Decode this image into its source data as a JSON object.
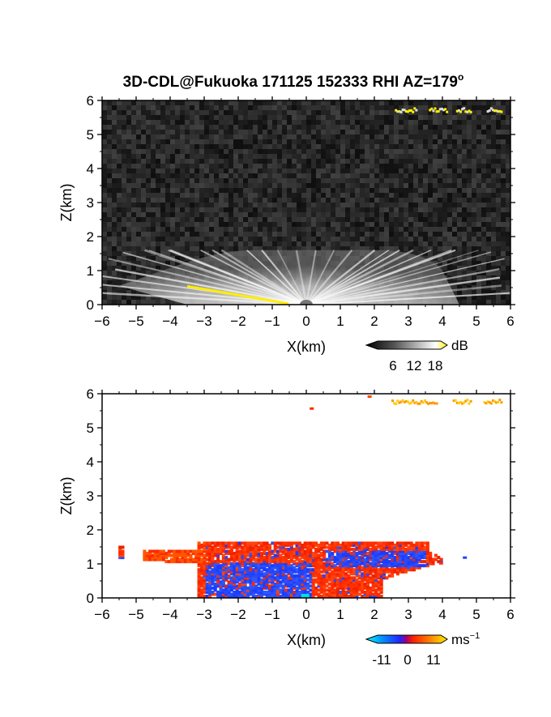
{
  "title": "3D-CDL@Fukuoka 171125 152333 RHI AZ=179",
  "title_superscript": "o",
  "chart_data": [
    {
      "type": "heatmap",
      "panel": "reflectivity",
      "xlabel": "X(km)",
      "ylabel": "Z(km)",
      "xlim": [
        -6,
        6
      ],
      "ylim": [
        0,
        6
      ],
      "x_ticks": [
        -6,
        -5,
        -4,
        -3,
        -2,
        -1,
        0,
        1,
        2,
        3,
        4,
        5,
        6
      ],
      "y_ticks": [
        0,
        1,
        2,
        3,
        4,
        5,
        6
      ],
      "colorbar": {
        "unit": "dB",
        "ticks": [
          6,
          12,
          18
        ],
        "colormap": "grayscale-to-yellow"
      },
      "features": [
        {
          "description": "near-surface echo fan",
          "x_range": [
            -5.5,
            4.0
          ],
          "z_top_km": 1.6
        },
        {
          "description": "high-value band along ground",
          "x_range": [
            -3.5,
            -0.6
          ],
          "z_range": [
            0.0,
            0.55
          ]
        },
        {
          "description": "elevated layer echoes",
          "x_range": [
            2.5,
            5.7
          ],
          "z_km": 5.75
        }
      ]
    },
    {
      "type": "heatmap",
      "panel": "doppler-velocity",
      "xlabel": "X(km)",
      "ylabel": "Z(km)",
      "xlim": [
        -6,
        6
      ],
      "ylim": [
        0,
        6
      ],
      "x_ticks": [
        -6,
        -5,
        -4,
        -3,
        -2,
        -1,
        0,
        1,
        2,
        3,
        4,
        5,
        6
      ],
      "y_ticks": [
        0,
        1,
        2,
        3,
        4,
        5,
        6
      ],
      "colorbar": {
        "unit": "ms",
        "unit_superscript": "−1",
        "ticks": [
          -11,
          0,
          11
        ],
        "colormap": "cyan-blue-red-yellow"
      },
      "features": [
        {
          "description": "approaching (blue) region",
          "x_range": [
            -3.5,
            4.0
          ],
          "z_range": [
            0.0,
            1.6
          ]
        },
        {
          "description": "receding (red) region",
          "x_range": [
            -5.5,
            4.5
          ],
          "z_range": [
            0.0,
            1.6
          ]
        },
        {
          "description": "elevated layer (orange-yellow)",
          "x_range": [
            2.5,
            5.7
          ],
          "z_km": 5.8
        }
      ]
    }
  ]
}
